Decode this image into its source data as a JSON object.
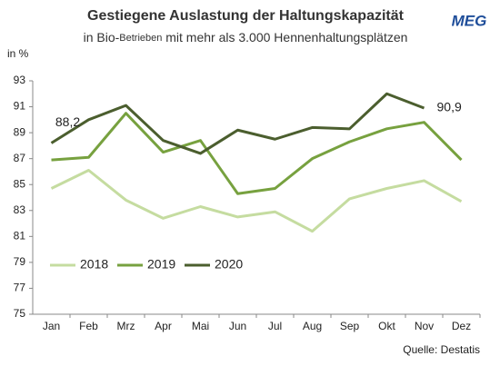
{
  "chart_data": {
    "type": "line",
    "title": "Gestiegene Auslastung der Haltungskapazität",
    "subtitle_parts": [
      "in Bio-",
      "Betrieben",
      " mit mehr als 3.000 Hennenhaltungsplätzen"
    ],
    "logo": "MEG",
    "y_label": "in %",
    "source": "Quelle: Destatis",
    "categories": [
      "Jan",
      "Feb",
      "Mrz",
      "Apr",
      "Mai",
      "Jun",
      "Jul",
      "Aug",
      "Sep",
      "Okt",
      "Nov",
      "Dez"
    ],
    "series": [
      {
        "name": "2018",
        "color": "#c5dca0",
        "values": [
          84.7,
          86.1,
          83.8,
          82.4,
          83.3,
          82.5,
          82.9,
          81.4,
          83.9,
          84.7,
          85.3,
          83.7
        ]
      },
      {
        "name": "2019",
        "color": "#77a13f",
        "values": [
          86.9,
          87.1,
          90.5,
          87.5,
          88.4,
          84.3,
          84.7,
          87.0,
          88.3,
          89.3,
          89.8,
          86.9
        ]
      },
      {
        "name": "2020",
        "color": "#4b5e2e",
        "values": [
          88.2,
          90.0,
          91.1,
          88.4,
          87.4,
          89.2,
          88.5,
          89.4,
          89.3,
          92.0,
          90.9,
          null
        ],
        "value_labels": [
          "88,2",
          null,
          null,
          null,
          null,
          null,
          null,
          null,
          null,
          null,
          "90,9",
          null
        ]
      }
    ],
    "ylim": [
      75,
      93
    ],
    "yticks": [
      75,
      77,
      79,
      81,
      83,
      85,
      87,
      89,
      91,
      93
    ],
    "grid": false,
    "legend": "bottom-left"
  }
}
